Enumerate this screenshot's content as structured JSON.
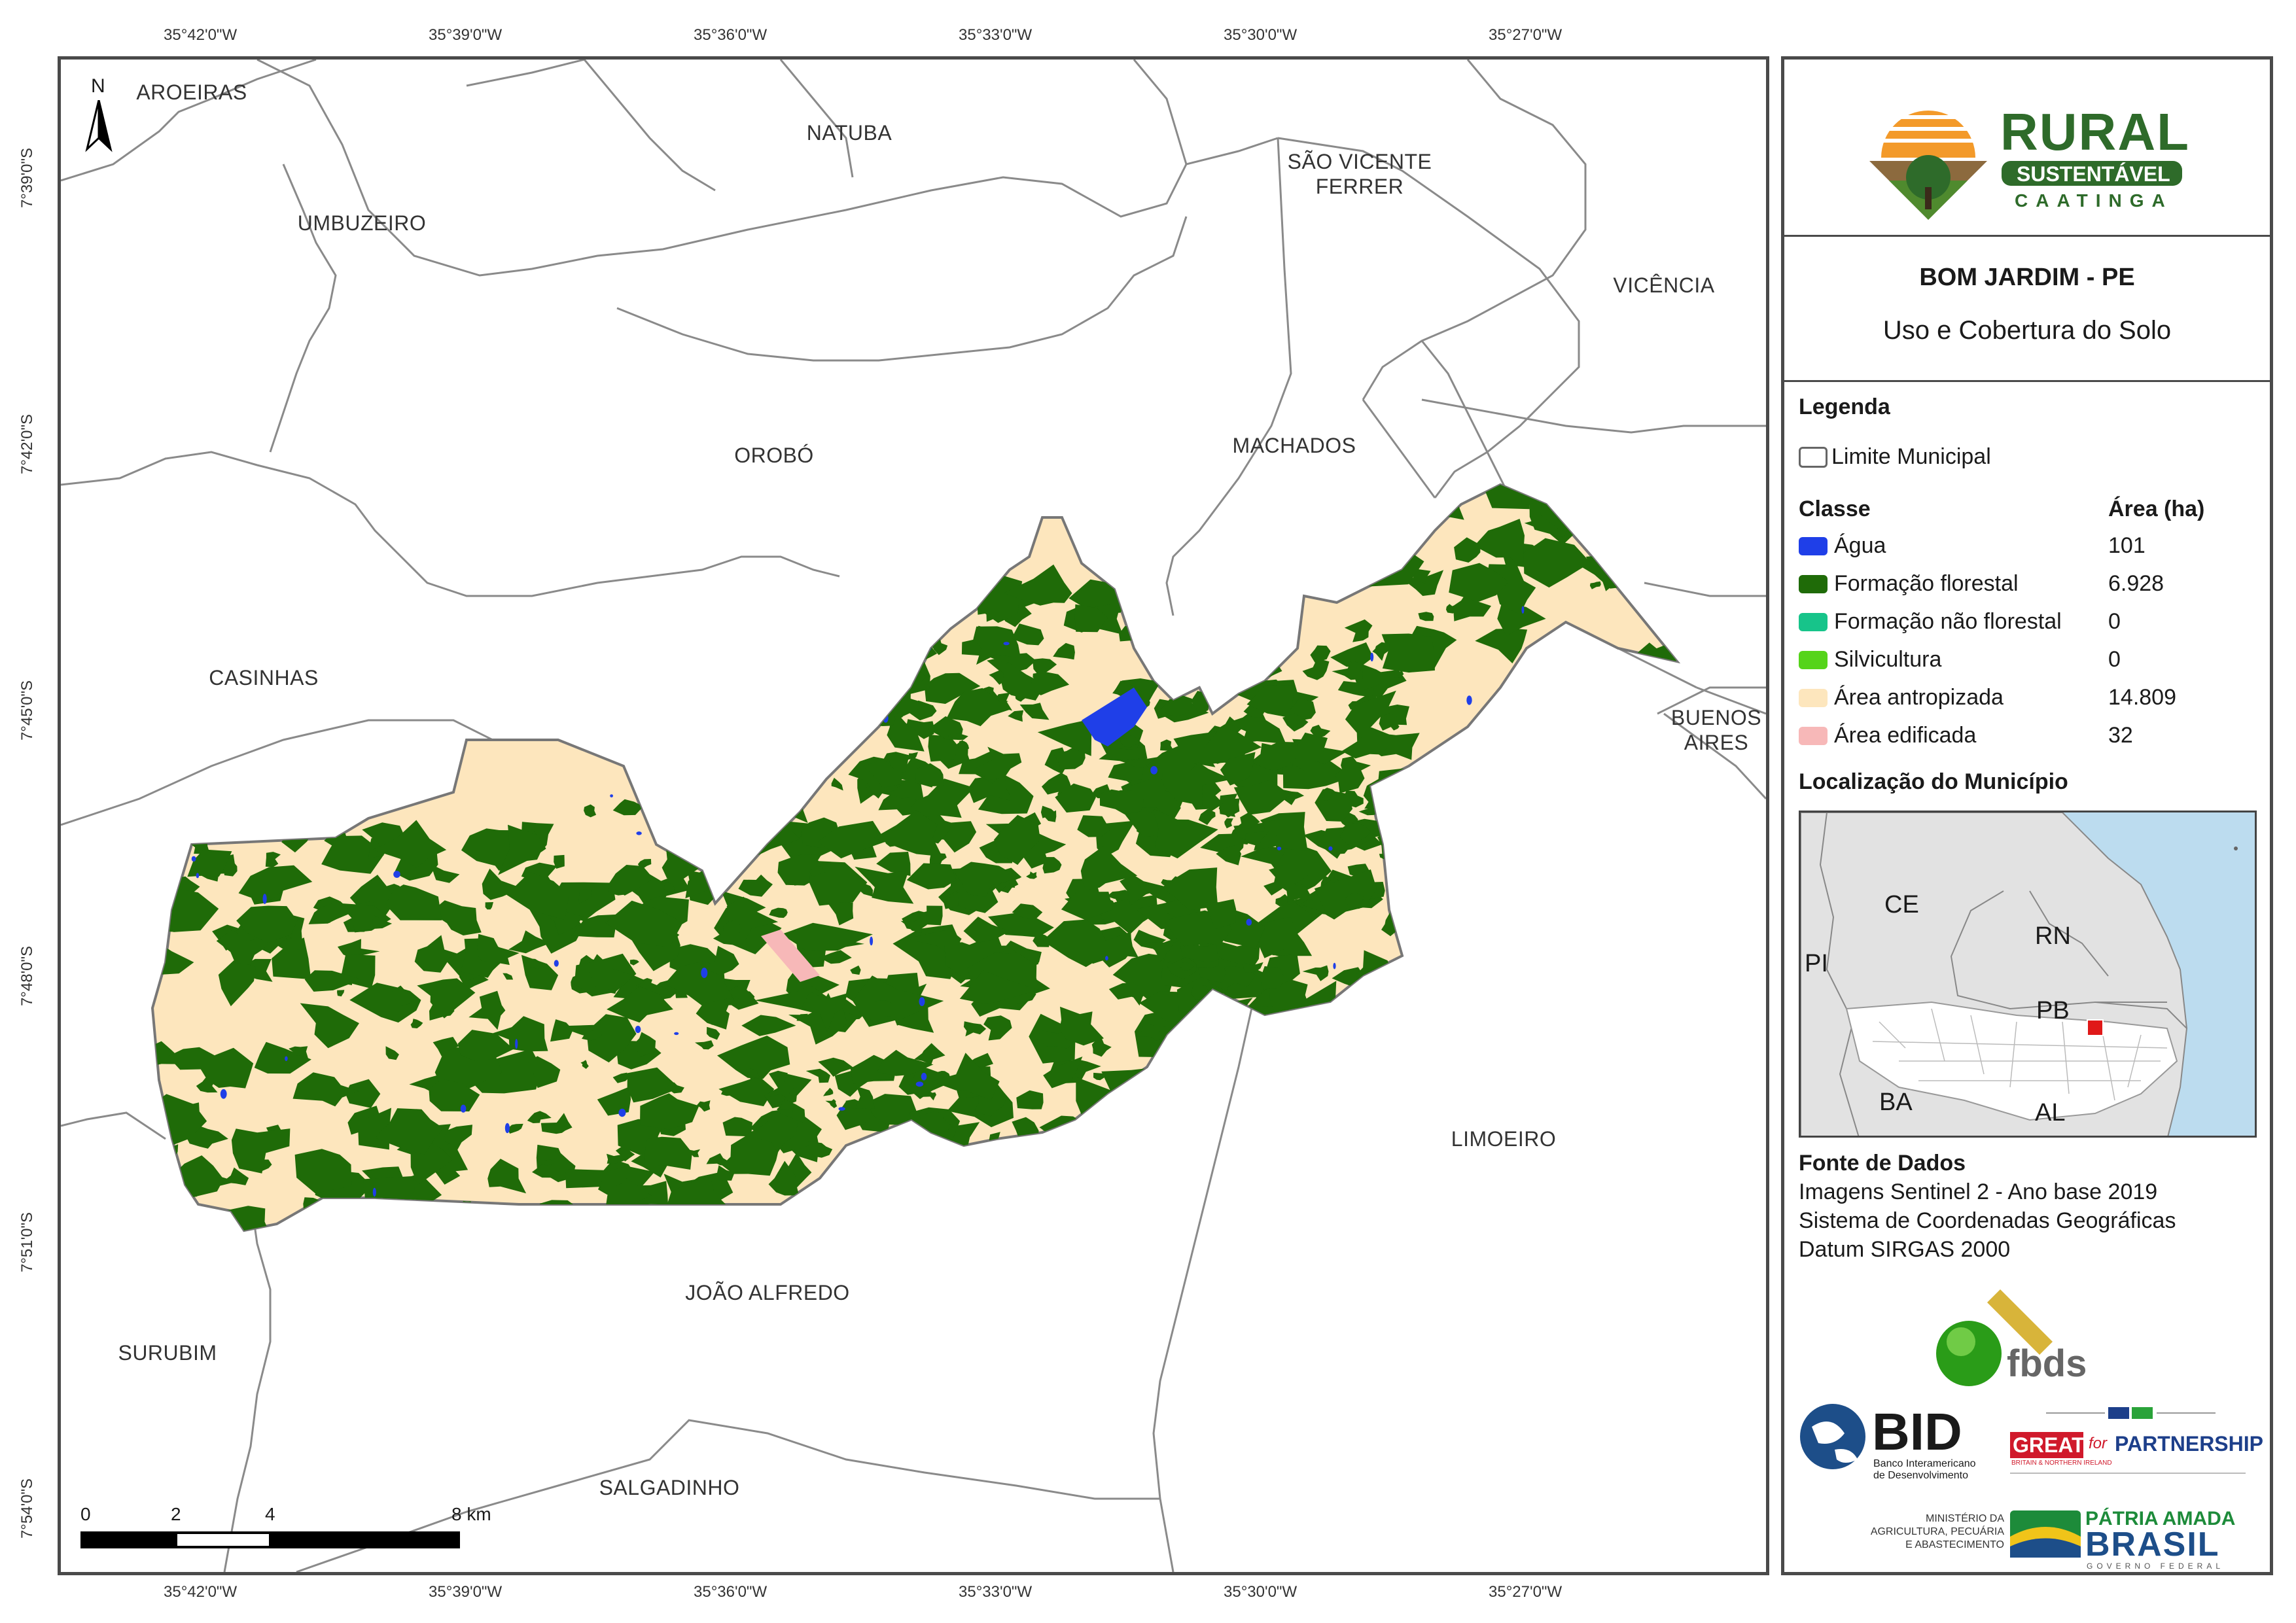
{
  "coords": {
    "lon": [
      "35°42'0\"W",
      "35°39'0\"W",
      "35°36'0\"W",
      "35°33'0\"W",
      "35°30'0\"W",
      "35°27'0\"W"
    ],
    "lat": [
      "7°39'0\"S",
      "7°42'0\"S",
      "7°45'0\"S",
      "7°48'0\"S",
      "7°51'0\"S",
      "7°54'0\"S"
    ]
  },
  "municipalities": {
    "aroeiras": "AROEIRAS",
    "natuba": "NATUBA",
    "sao_vicente_1": "SÃO VICENTE",
    "sao_vicente_2": "FERRER",
    "umbuzeiro": "UMBUZEIRO",
    "vicencia": "VICÊNCIA",
    "oroba": "OROBÓ",
    "machados": "MACHADOS",
    "casinhas": "CASINHAS",
    "buenos_1": "BUENOS",
    "buenos_2": "AIRES",
    "limoeiro": "LIMOEIRO",
    "joao_alfredo": "JOÃO ALFREDO",
    "surubim": "SURUBIM",
    "salgadinho": "SALGADINHO"
  },
  "north_arrow": "N",
  "scale_bar": {
    "labels": [
      "0",
      "2",
      "4",
      "8 km"
    ]
  },
  "logo": {
    "rural": "RURAL",
    "sustentavel": "SUSTENTÁVEL",
    "caatinga": "CAATINGA"
  },
  "title": {
    "main": "BOM JARDIM - PE",
    "sub": "Uso e Cobertura do Solo"
  },
  "legend": {
    "heading": "Legenda",
    "boundary": "Limite Municipal",
    "class_header": "Classe",
    "area_header": "Área (ha)",
    "classes": [
      {
        "name": "Água",
        "area": "101",
        "color": "#1f3fe8"
      },
      {
        "name": "Formação florestal",
        "area": "6.928",
        "color": "#1f6b08"
      },
      {
        "name": "Formação não florestal",
        "area": "0",
        "color": "#17c48a"
      },
      {
        "name": "Silvicultura",
        "area": "0",
        "color": "#55d41a"
      },
      {
        "name": "Área antropizada",
        "area": "14.809",
        "color": "#fde6bd"
      },
      {
        "name": "Área edificada",
        "area": "32",
        "color": "#f7b8b8"
      }
    ]
  },
  "location": {
    "heading": "Localização do Município",
    "states": {
      "ce": "CE",
      "rn": "RN",
      "pi": "PI",
      "pb": "PB",
      "ba": "BA",
      "al": "AL"
    }
  },
  "source": {
    "heading": "Fonte de Dados",
    "lines": [
      "Imagens Sentinel 2 - Ano base 2019",
      "Sistema de Coordenadas Geográficas",
      "Datum SIRGAS 2000"
    ]
  },
  "partners": {
    "fbds": "fbds",
    "bid": "BID",
    "bid_sub1": "Banco Interamericano",
    "bid_sub2": "de Desenvolvimento",
    "great": "GREAT",
    "for": "for",
    "partnership": "PARTNERSHIP",
    "great_sub": "BRITAIN & NORTHERN IRELAND",
    "ministerio": [
      "MINISTÉRIO DA",
      "AGRICULTURA, PECUÁRIA",
      "E ABASTECIMENTO"
    ],
    "patria": "PÁTRIA AMADA",
    "brasil": "BRASIL",
    "governo": "GOVERNO FEDERAL"
  },
  "colors": {
    "water": "#1f3fe8",
    "forest": "#1f6b08",
    "anthropic": "#fde6bd",
    "built": "#f7b8b8",
    "frame": "#4a4a4a",
    "ocean": "#bcdcef",
    "brand_green": "#2e6b2a"
  }
}
